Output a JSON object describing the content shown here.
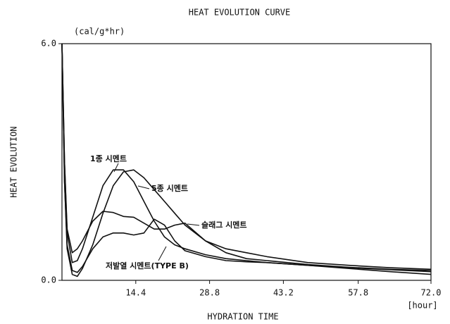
{
  "chart_data": {
    "type": "line",
    "title": "HEAT EVOLUTION CURVE",
    "y_label": "HEAT EVOLUTION",
    "y_unit": "(cal/g*hr)",
    "x_label": "HYDRATION TIME",
    "x_unit": "[hour]",
    "x": [
      0,
      0.5,
      1,
      2,
      3,
      4,
      6,
      8,
      10,
      12,
      14,
      16,
      18,
      20,
      22,
      24,
      28,
      32,
      36,
      40,
      48,
      56,
      64,
      72
    ],
    "series": [
      {
        "name": "1종 시멘트",
        "color": "#111111",
        "values": [
          6.0,
          3.0,
          1.2,
          0.45,
          0.5,
          0.8,
          1.6,
          2.4,
          2.8,
          2.8,
          2.5,
          2.0,
          1.5,
          1.1,
          0.9,
          0.8,
          0.65,
          0.55,
          0.5,
          0.45,
          0.38,
          0.32,
          0.27,
          0.22
        ]
      },
      {
        "name": "5종 시멘트",
        "color": "#111111",
        "values": [
          6.0,
          2.5,
          0.8,
          0.15,
          0.1,
          0.3,
          0.9,
          1.7,
          2.4,
          2.75,
          2.8,
          2.6,
          2.3,
          2.0,
          1.7,
          1.4,
          1.0,
          0.8,
          0.7,
          0.6,
          0.45,
          0.38,
          0.32,
          0.28
        ]
      },
      {
        "name": "슬래그 시멘트",
        "color": "#111111",
        "values": [
          6.0,
          3.0,
          1.3,
          0.7,
          0.8,
          1.0,
          1.5,
          1.75,
          1.72,
          1.62,
          1.6,
          1.45,
          1.3,
          1.3,
          1.4,
          1.45,
          1.0,
          0.7,
          0.55,
          0.5,
          0.4,
          0.33,
          0.28,
          0.25
        ]
      },
      {
        "name": "저발열 시멘트(TYPE B)",
        "color": "#111111",
        "values": [
          6.0,
          2.5,
          0.9,
          0.25,
          0.2,
          0.35,
          0.8,
          1.1,
          1.2,
          1.2,
          1.15,
          1.2,
          1.55,
          1.4,
          1.0,
          0.75,
          0.6,
          0.5,
          0.47,
          0.45,
          0.38,
          0.3,
          0.22,
          0.15
        ]
      }
    ],
    "xlim": [
      0,
      72
    ],
    "xticks": [
      14.4,
      28.8,
      43.2,
      57.8,
      {
        "value": 72,
        "label": "72.0"
      }
    ],
    "ylim": [
      0,
      6
    ],
    "yticks": [
      {
        "value": 0,
        "label": "0.0"
      },
      {
        "value": 6,
        "label": "6.0"
      }
    ],
    "grid": false
  }
}
